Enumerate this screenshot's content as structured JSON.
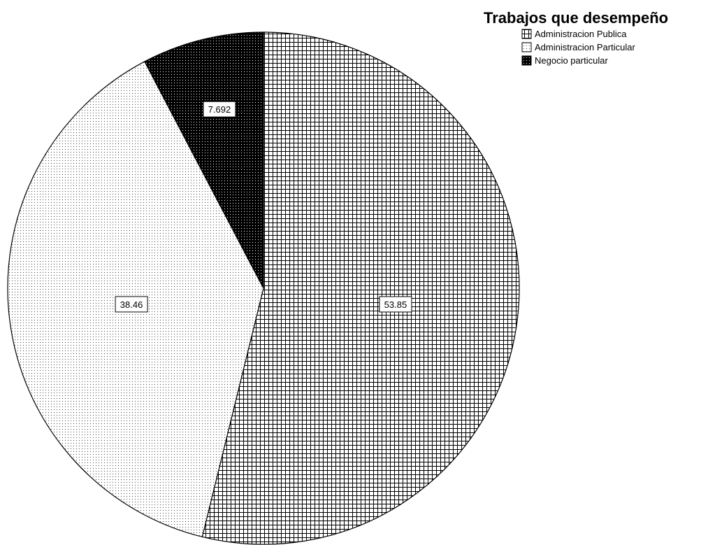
{
  "chart_data": {
    "type": "pie",
    "title": "Trabajos que desempeño",
    "legend_position": "top-right",
    "series": [
      {
        "name": "Administracion Publica",
        "value": 53.85,
        "label": "53.85",
        "pattern": "grid",
        "color": "#000000"
      },
      {
        "name": "Administracion Particular",
        "value": 38.46,
        "label": "38.46",
        "pattern": "dots",
        "color": "#000000"
      },
      {
        "name": "Negocio particular",
        "value": 7.692,
        "label": "7.692",
        "pattern": "solid",
        "color": "#000000"
      }
    ]
  }
}
